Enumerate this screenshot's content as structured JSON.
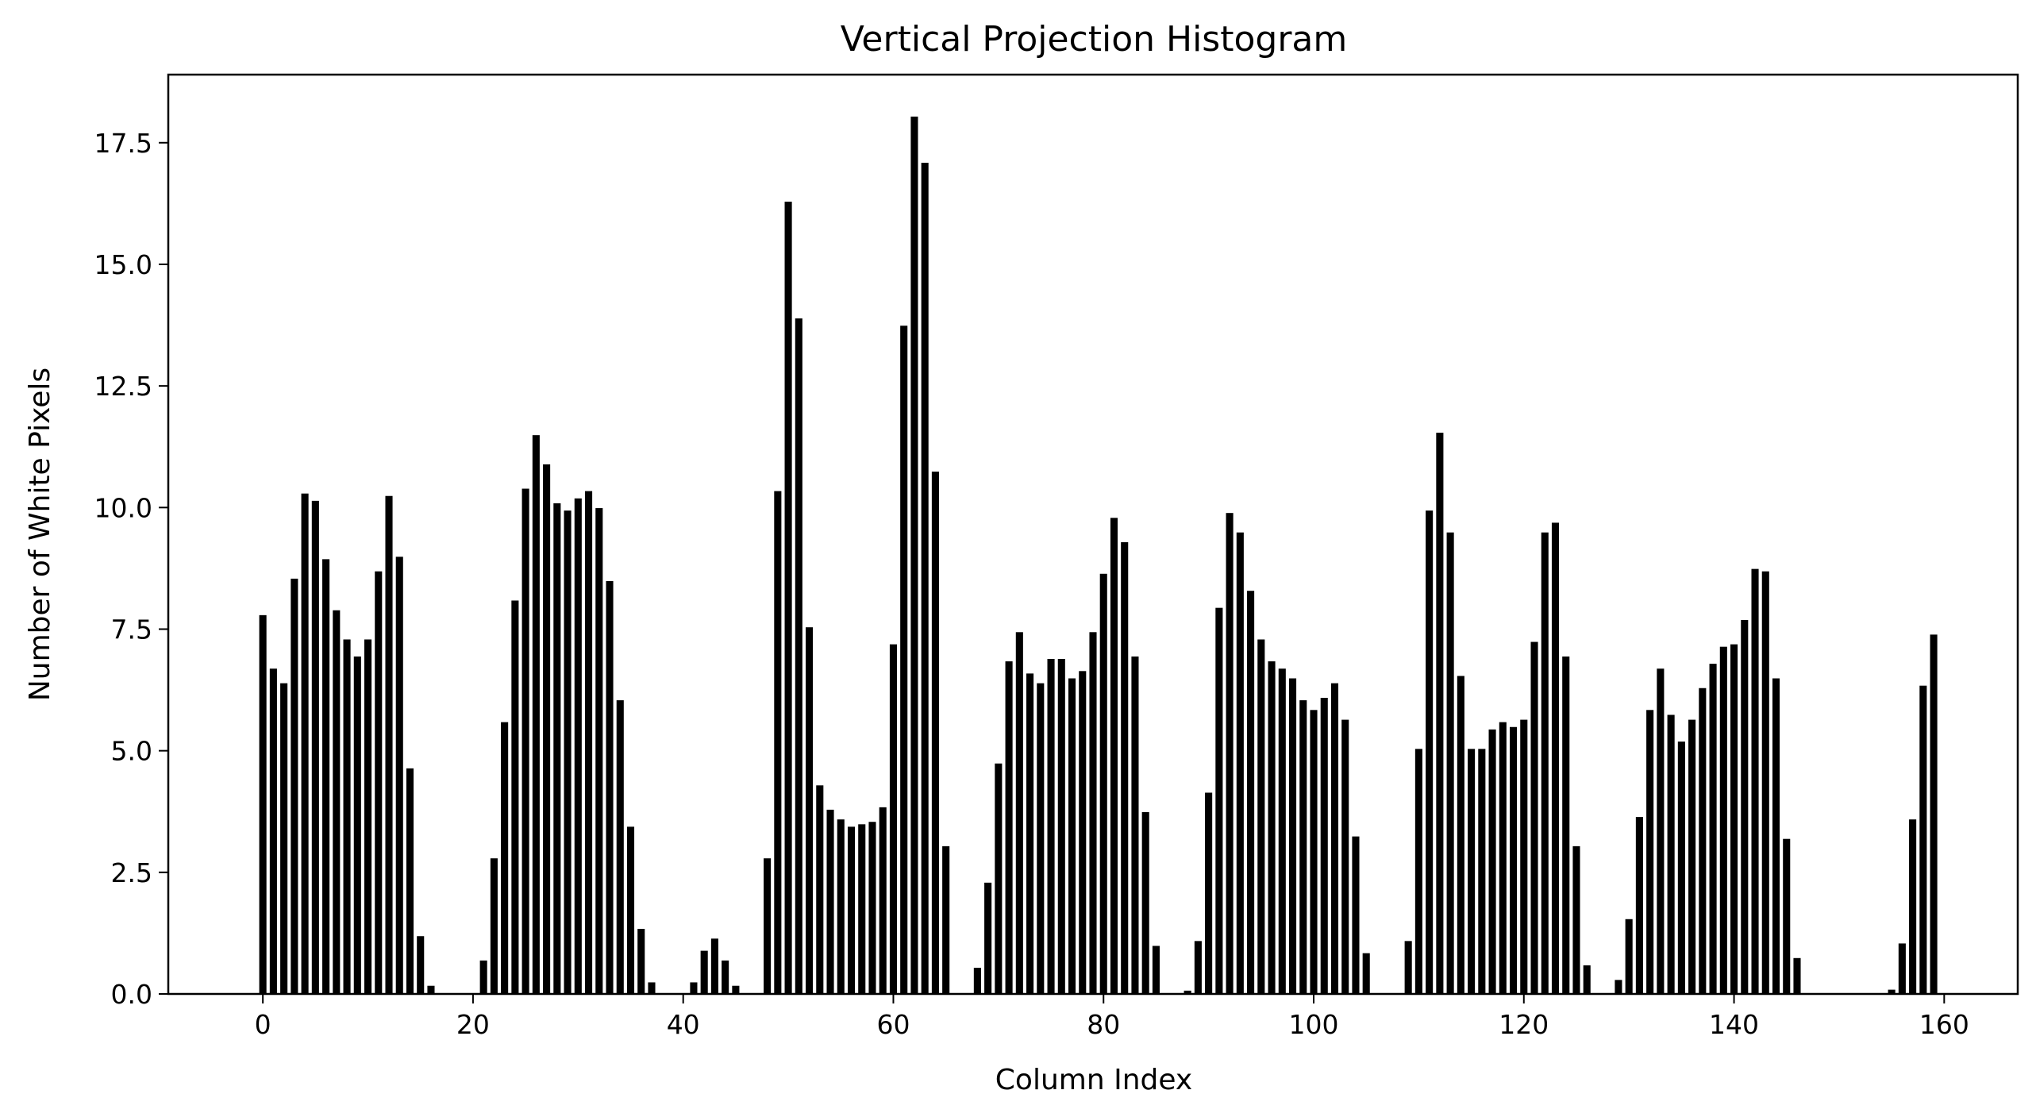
{
  "chart_data": {
    "type": "bar",
    "title": "Vertical Projection Histogram",
    "xlabel": "Column Index",
    "ylabel": "Number of White Pixels",
    "xlim": [
      -9,
      167
    ],
    "ylim": [
      0,
      18.9
    ],
    "xticks": [
      0,
      20,
      40,
      60,
      80,
      100,
      120,
      140,
      160
    ],
    "yticks": [
      0.0,
      2.5,
      5.0,
      7.5,
      10.0,
      12.5,
      15.0,
      17.5
    ],
    "ytick_labels": [
      "0.0",
      "2.5",
      "5.0",
      "7.5",
      "10.0",
      "12.5",
      "15.0",
      "17.5"
    ],
    "grid": false,
    "bar_color": "#000000",
    "bar_edge_color": "#ffffff",
    "x": [
      0,
      1,
      2,
      3,
      4,
      5,
      6,
      7,
      8,
      9,
      10,
      11,
      12,
      13,
      14,
      15,
      16,
      17,
      18,
      19,
      20,
      21,
      22,
      23,
      24,
      25,
      26,
      27,
      28,
      29,
      30,
      31,
      32,
      33,
      34,
      35,
      36,
      37,
      38,
      39,
      40,
      41,
      42,
      43,
      44,
      45,
      46,
      47,
      48,
      49,
      50,
      51,
      52,
      53,
      54,
      55,
      56,
      57,
      58,
      59,
      60,
      61,
      62,
      63,
      64,
      65,
      66,
      67,
      68,
      69,
      70,
      71,
      72,
      73,
      74,
      75,
      76,
      77,
      78,
      79,
      80,
      81,
      82,
      83,
      84,
      85,
      86,
      87,
      88,
      89,
      90,
      91,
      92,
      93,
      94,
      95,
      96,
      97,
      98,
      99,
      100,
      101,
      102,
      103,
      104,
      105,
      106,
      107,
      108,
      109,
      110,
      111,
      112,
      113,
      114,
      115,
      116,
      117,
      118,
      119,
      120,
      121,
      122,
      123,
      124,
      125,
      126,
      127,
      128,
      129,
      130,
      131,
      132,
      133,
      134,
      135,
      136,
      137,
      138,
      139,
      140,
      141,
      142,
      143,
      144,
      145,
      146,
      147,
      148,
      149,
      150,
      151,
      152,
      153,
      154,
      155,
      156,
      157,
      158,
      159
    ],
    "values": [
      7.8,
      6.7,
      6.4,
      8.55,
      10.3,
      10.15,
      8.95,
      7.9,
      7.3,
      6.95,
      7.3,
      8.7,
      10.25,
      9.0,
      4.65,
      1.2,
      0.18,
      0,
      0,
      0,
      0,
      0.7,
      2.8,
      5.6,
      8.1,
      10.4,
      11.5,
      10.9,
      10.1,
      9.95,
      10.2,
      10.35,
      10.0,
      8.5,
      6.05,
      3.45,
      1.35,
      0.25,
      0,
      0,
      0,
      0.25,
      0.9,
      1.15,
      0.7,
      0.18,
      0,
      0,
      2.8,
      10.35,
      16.3,
      13.9,
      7.55,
      4.3,
      3.8,
      3.6,
      3.45,
      3.5,
      3.55,
      3.85,
      7.2,
      13.75,
      18.05,
      17.1,
      10.75,
      3.05,
      0,
      0,
      0.55,
      2.3,
      4.75,
      6.85,
      7.45,
      6.6,
      6.4,
      6.9,
      6.9,
      6.5,
      6.65,
      7.45,
      8.65,
      9.8,
      9.3,
      6.95,
      3.75,
      1.0,
      0,
      0,
      0.08,
      1.1,
      4.15,
      7.95,
      9.9,
      9.5,
      8.3,
      7.3,
      6.85,
      6.7,
      6.5,
      6.05,
      5.85,
      6.1,
      6.4,
      5.65,
      3.25,
      0.85,
      0,
      0,
      0,
      1.1,
      5.05,
      9.95,
      11.55,
      9.5,
      6.55,
      5.05,
      5.05,
      5.45,
      5.6,
      5.5,
      5.65,
      7.25,
      9.5,
      9.7,
      6.95,
      3.05,
      0.6,
      0,
      0,
      0.3,
      1.55,
      3.65,
      5.85,
      6.7,
      5.75,
      5.2,
      5.65,
      6.3,
      6.8,
      7.15,
      7.2,
      7.7,
      8.75,
      8.7,
      6.5,
      3.2,
      0.75,
      0,
      0,
      0,
      0,
      0,
      0,
      0,
      0,
      0.1,
      1.05,
      3.6,
      6.35,
      7.4
    ]
  }
}
